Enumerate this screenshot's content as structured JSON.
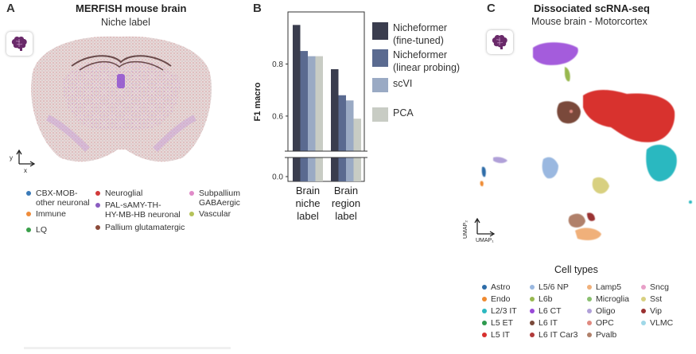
{
  "panel_a": {
    "letter": "A",
    "title": "MERFISH mouse brain",
    "subtitle": "Niche label",
    "axis_y": "y",
    "axis_x": "x",
    "legend": [
      {
        "label": "CBX-MOB-\nother neuronal",
        "color": "#3a7ab8"
      },
      {
        "label": "Immune",
        "color": "#ef8c3a"
      },
      {
        "label": "LQ",
        "color": "#3aa04a"
      },
      {
        "label": "Neuroglial",
        "color": "#d23a3a"
      },
      {
        "label": "PAL-sAMY-TH-\nHY-MB-HB neuronal",
        "color": "#8a5cc0"
      },
      {
        "label": "Pallium glutamatergic",
        "color": "#8b4a3a"
      },
      {
        "label": "Subpallium\nGABAergic",
        "color": "#e08bc8"
      },
      {
        "label": "Vascular",
        "color": "#b5c25a"
      }
    ]
  },
  "panel_b": {
    "letter": "B"
  },
  "panel_c": {
    "letter": "C",
    "title": "Dissociated scRNA-seq",
    "subtitle": "Mouse brain - Motorcortex",
    "umap_y": "UMAP₂",
    "umap_x": "UMAP₁",
    "legend_title": "Cell types",
    "cell_types": [
      {
        "label": "Astro",
        "color": "#2d6ca8"
      },
      {
        "label": "Endo",
        "color": "#ef8a30"
      },
      {
        "label": "L2/3 IT",
        "color": "#2cb8c0"
      },
      {
        "label": "L5 ET",
        "color": "#2e9a4e"
      },
      {
        "label": "L5 IT",
        "color": "#d8302e"
      },
      {
        "label": "L5/6 NP",
        "color": "#9ab8e0"
      },
      {
        "label": "L6b",
        "color": "#98b850"
      },
      {
        "label": "L6 CT",
        "color": "#9a4ad8"
      },
      {
        "label": "L6 IT",
        "color": "#7a4a3a"
      },
      {
        "label": "L6 IT Car3",
        "color": "#b03a3a"
      },
      {
        "label": "Lamp5",
        "color": "#f0b07a"
      },
      {
        "label": "Microglia",
        "color": "#8ac070"
      },
      {
        "label": "Oligo",
        "color": "#b0a0d8"
      },
      {
        "label": "OPC",
        "color": "#e08a80"
      },
      {
        "label": "Pvalb",
        "color": "#b0806a"
      },
      {
        "label": "Sncg",
        "color": "#e8a0c8"
      },
      {
        "label": "Sst",
        "color": "#d8d080"
      },
      {
        "label": "Vip",
        "color": "#9a3030"
      },
      {
        "label": "VLMC",
        "color": "#a0d8e8"
      }
    ]
  },
  "chart_data": {
    "type": "bar",
    "categories": [
      "Brain\nniche\nlabel",
      "Brain\nregion\nlabel"
    ],
    "series": [
      {
        "name": "Nicheformer\n(fine-tuned)",
        "color": "#3a3d4e",
        "values": [
          0.95,
          0.78
        ]
      },
      {
        "name": "Nicheformer\n(linear probing)",
        "color": "#5a6a90",
        "values": [
          0.85,
          0.68
        ]
      },
      {
        "name": "scVI",
        "color": "#9aaac4",
        "values": [
          0.83,
          0.66
        ]
      },
      {
        "name": "PCA",
        "color": "#c8ccc4",
        "values": [
          0.83,
          0.59
        ]
      }
    ],
    "ylabel": "F1 macro",
    "yticks": [
      "0.0",
      "0.6",
      "0.8"
    ],
    "ylim": [
      0,
      1
    ],
    "axis_break": true,
    "grid": false,
    "legend_position": "right"
  }
}
